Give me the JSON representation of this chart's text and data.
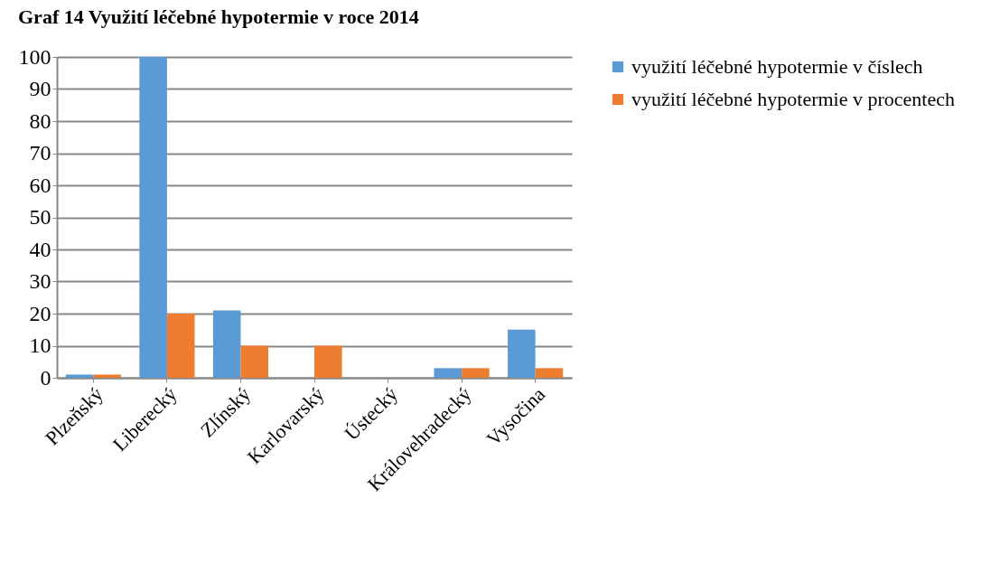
{
  "chart_data": {
    "type": "bar",
    "title": "Graf 14 Využití léčebné hypotermie v roce 2014",
    "categories": [
      "Plzeňský",
      "Liberecký",
      "Zlínský",
      "Karlovarský",
      "Ústecký",
      "Královehradecký",
      "Vysočina"
    ],
    "series": [
      {
        "name": "využití léčebné hypotermie v číslech",
        "color": "#5b9bd5",
        "values": [
          1,
          100,
          21,
          0,
          0,
          3,
          15
        ]
      },
      {
        "name": "využití léčebné hypotermie v procentech",
        "color": "#ed7d31",
        "values": [
          1,
          20,
          10,
          10,
          0,
          3,
          3
        ]
      }
    ],
    "ylim": [
      0,
      100
    ],
    "yticks": [
      0,
      10,
      20,
      30,
      40,
      50,
      60,
      70,
      80,
      90,
      100
    ],
    "grid": "y",
    "legend": "right"
  }
}
